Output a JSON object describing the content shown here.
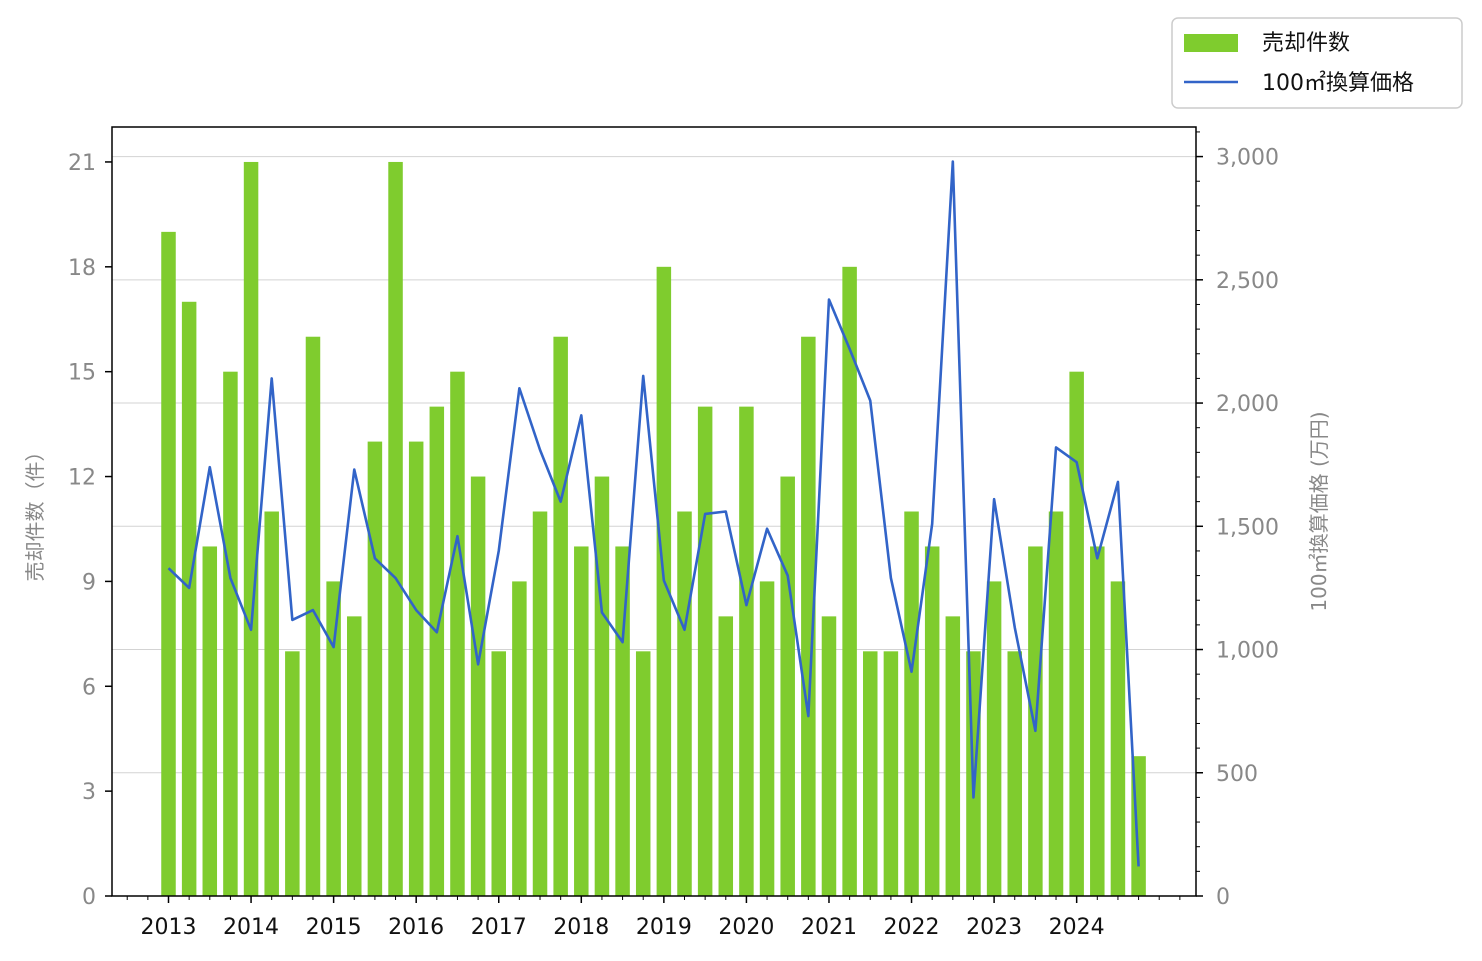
{
  "colors": {
    "bar": "#7fcc2e",
    "line": "#3264c8",
    "grid": "#d3d3d3",
    "tick_text_left_right": "#888888",
    "tick_text_x": "#111111",
    "axis": "#000000"
  },
  "chart_data": {
    "type": "bar",
    "title": "",
    "xlabel": "",
    "ylabel": "売却件数（件）",
    "y2label": "100㎡換算価格 (万円)",
    "ylim": [
      0,
      22
    ],
    "y2lim": [
      0,
      3120
    ],
    "yticks": [
      "0",
      "3",
      "6",
      "9",
      "12",
      "15",
      "18",
      "21"
    ],
    "y2ticks": [
      "0",
      "500",
      "1,000",
      "1,500",
      "2,000",
      "2,500",
      "3,000"
    ],
    "xticks": [
      "2013",
      "2014",
      "2015",
      "2016",
      "2017",
      "2018",
      "2019",
      "2020",
      "2021",
      "2022",
      "2023",
      "2024"
    ],
    "grid": "horizontal, right axis",
    "legend_position": "top-right",
    "categories": [
      "2013 Q1",
      "2013 Q2",
      "2013 Q3",
      "2013 Q4",
      "2014 Q1",
      "2014 Q2",
      "2014 Q3",
      "2014 Q4",
      "2015 Q1",
      "2015 Q2",
      "2015 Q3",
      "2015 Q4",
      "2016 Q1",
      "2016 Q2",
      "2016 Q3",
      "2016 Q4",
      "2017 Q1",
      "2017 Q2",
      "2017 Q3",
      "2017 Q4",
      "2018 Q1",
      "2018 Q2",
      "2018 Q3",
      "2018 Q4",
      "2019 Q1",
      "2019 Q2",
      "2019 Q3",
      "2019 Q4",
      "2020 Q1",
      "2020 Q2",
      "2020 Q3",
      "2020 Q4",
      "2021 Q1",
      "2021 Q2",
      "2021 Q3",
      "2021 Q4",
      "2022 Q1",
      "2022 Q2",
      "2022 Q3",
      "2022 Q4",
      "2023 Q1",
      "2023 Q2",
      "2023 Q3",
      "2023 Q4",
      "2024 Q1",
      "2024 Q2",
      "2024 Q3",
      "2024 Q4"
    ],
    "series": [
      {
        "name": "売却件数",
        "type": "bar",
        "axis": "left",
        "values": [
          19,
          17,
          10,
          15,
          21,
          11,
          7,
          16,
          9,
          8,
          13,
          21,
          13,
          14,
          15,
          12,
          7,
          9,
          11,
          16,
          10,
          12,
          10,
          7,
          18,
          11,
          14,
          8,
          14,
          9,
          12,
          16,
          8,
          18,
          7,
          7,
          11,
          10,
          8,
          7,
          9,
          7,
          10,
          11,
          15,
          10,
          9,
          4
        ]
      },
      {
        "name": "100㎡換算価格",
        "type": "line",
        "axis": "right",
        "values": [
          1330,
          1250,
          1740,
          1290,
          1080,
          2100,
          1120,
          1160,
          1010,
          1730,
          1370,
          1290,
          1160,
          1070,
          1460,
          940,
          1400,
          2060,
          1810,
          1600,
          1950,
          1150,
          1030,
          2110,
          1280,
          1080,
          1550,
          1560,
          1180,
          1490,
          1300,
          730,
          2420,
          2220,
          2010,
          1290,
          910,
          1510,
          2980,
          400,
          1610,
          1090,
          670,
          1820,
          1760,
          1370,
          1680,
          120
        ]
      }
    ]
  }
}
